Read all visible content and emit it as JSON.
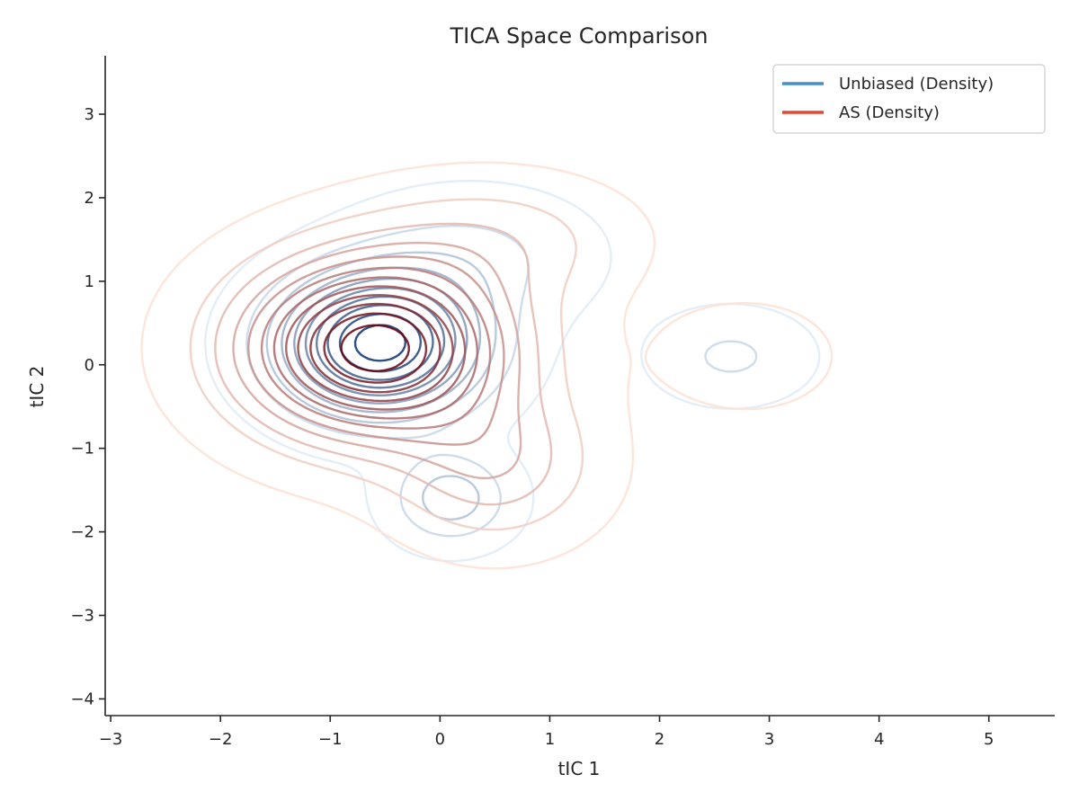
{
  "chart_data": {
    "type": "contour",
    "title": "TICA Space Comparison",
    "xlabel": "tIC 1",
    "ylabel": "tIC 2",
    "xlim": [
      -3.05,
      5.6
    ],
    "ylim": [
      -4.2,
      3.7
    ],
    "xticks": [
      -3,
      -2,
      -1,
      0,
      1,
      2,
      3,
      4,
      5
    ],
    "yticks": [
      -4,
      -3,
      -2,
      -1,
      0,
      1,
      2,
      3
    ],
    "xtick_labels": [
      "−3",
      "−2",
      "−1",
      "0",
      "1",
      "2",
      "3",
      "4",
      "5"
    ],
    "ytick_labels": [
      "−4",
      "−3",
      "−2",
      "−1",
      "0",
      "1",
      "2",
      "3"
    ],
    "grid": false,
    "legend_position": "top-right",
    "series": [
      {
        "name": "Unbiased (Density)",
        "legend_color": "#4292c6",
        "kind": "kde-density-contours",
        "levels": 10,
        "colormap": [
          "#deebf7",
          "#08306b"
        ],
        "modes": [
          {
            "x": -0.55,
            "y": 0.25,
            "sx": 0.6,
            "sy": 0.55,
            "w": 1.0
          },
          {
            "x": 0.1,
            "y": -1.6,
            "sx": 0.35,
            "sy": 0.35,
            "w": 0.3
          },
          {
            "x": 2.65,
            "y": 0.1,
            "sx": 0.45,
            "sy": 0.35,
            "w": 0.15
          },
          {
            "x": 0.3,
            "y": 1.3,
            "sx": 0.7,
            "sy": 0.5,
            "w": 0.15
          }
        ]
      },
      {
        "name": "AS (Density)",
        "legend_color": "#e34a33",
        "kind": "kde-density-contours",
        "levels": 12,
        "colormap": [
          "#fee0d2",
          "#67000d"
        ],
        "modes": [
          {
            "x": -0.6,
            "y": 0.2,
            "sx": 0.8,
            "sy": 0.7,
            "w": 1.0
          },
          {
            "x": 0.5,
            "y": -1.2,
            "sx": 0.6,
            "sy": 0.6,
            "w": 0.25
          },
          {
            "x": 2.8,
            "y": 0.1,
            "sx": 0.55,
            "sy": 0.45,
            "w": 0.08
          },
          {
            "x": 0.5,
            "y": 1.5,
            "sx": 0.8,
            "sy": 0.5,
            "w": 0.15
          }
        ]
      }
    ]
  }
}
